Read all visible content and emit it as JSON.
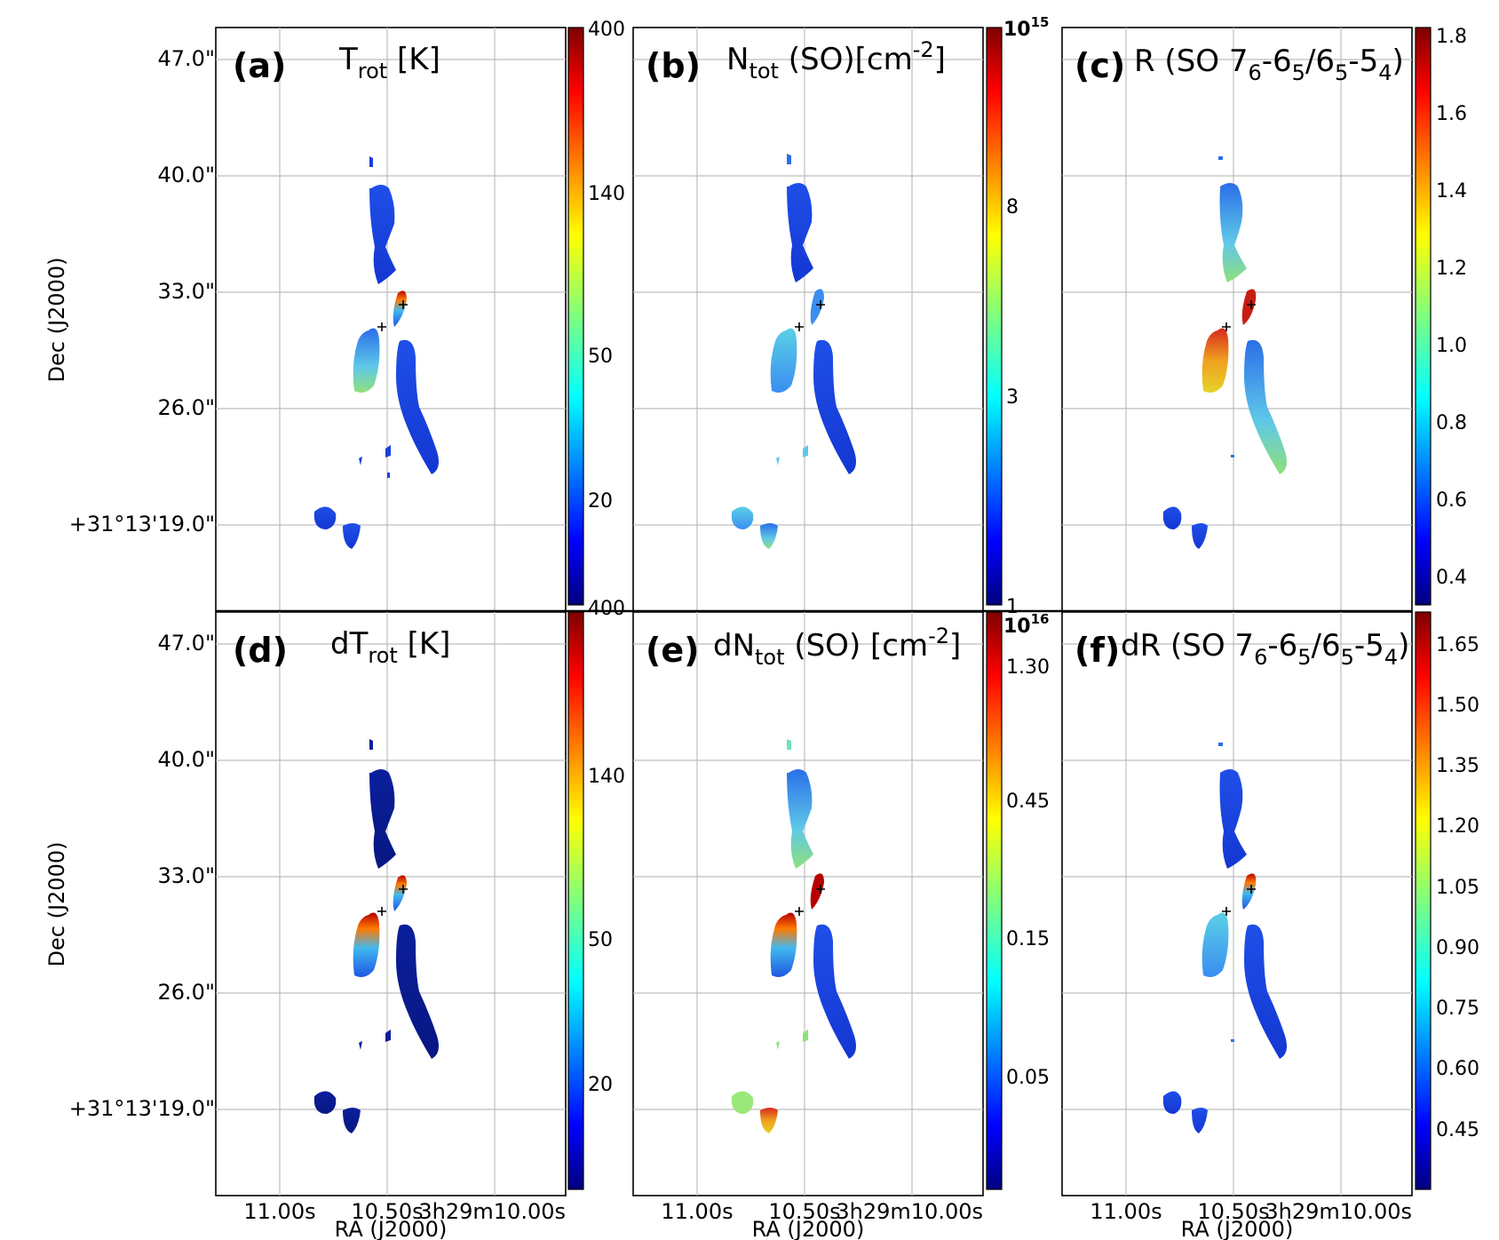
{
  "figure": {
    "axis_label_dec": "Dec (J2000)",
    "axis_label_ra": "RA (J2000)",
    "dec_ticks": [
      "47.0\"",
      "40.0\"",
      "33.0\"",
      "26.0\"",
      "+31°13'19.0\""
    ],
    "ra_ticks": [
      "11.00s",
      "10.50s",
      "3h29m10.00s"
    ]
  },
  "panels": [
    {
      "id": "a",
      "letter": "(a)",
      "title": {
        "main": "T",
        "sub": "rot",
        "tail": " [K]"
      },
      "colorbar": {
        "labels": [
          "400",
          "140",
          "50",
          "20"
        ],
        "exponent": "",
        "top_tick": ""
      }
    },
    {
      "id": "b",
      "letter": "(b)",
      "title": {
        "main": "N",
        "sub": "tot",
        "tail": " (SO)[cm",
        "sup": "-2",
        "end": "]"
      },
      "colorbar": {
        "labels": [
          "8",
          "3"
        ],
        "exponent": "10",
        "exponent_sup": "15",
        "bottom_tick": "1"
      }
    },
    {
      "id": "c",
      "letter": "(c)",
      "title": {
        "main": "R (SO 7",
        "s1": "6",
        "m1": "-6",
        "s2": "5",
        "m2": "/6",
        "s3": "5",
        "m3": "-5",
        "s4": "4",
        "end": ")"
      },
      "colorbar": {
        "labels": [
          "1.8",
          "1.6",
          "1.4",
          "1.2",
          "1.0",
          "0.8",
          "0.6",
          "0.4"
        ]
      }
    },
    {
      "id": "d",
      "letter": "(d)",
      "title": {
        "main": "dT",
        "sub": "rot",
        "tail": " [K]"
      },
      "colorbar": {
        "labels": [
          "400",
          "140",
          "50",
          "20"
        ]
      }
    },
    {
      "id": "e",
      "letter": "(e)",
      "title": {
        "main": "dN",
        "sub": "tot",
        "tail": " (SO) [cm",
        "sup": "-2",
        "end": "]"
      },
      "colorbar": {
        "labels": [
          "1.30",
          "0.45",
          "0.15",
          "0.05"
        ],
        "exponent": "10",
        "exponent_sup": "16"
      }
    },
    {
      "id": "f",
      "letter": "(f)",
      "title": {
        "main": "dR (SO 7",
        "s1": "6",
        "m1": "-6",
        "s2": "5",
        "m2": "/6",
        "s3": "5",
        "m3": "-5",
        "s4": "4",
        "end": ")"
      },
      "colorbar": {
        "labels": [
          "1.65",
          "1.50",
          "1.35",
          "1.20",
          "1.05",
          "0.90",
          "0.75",
          "0.60",
          "0.45"
        ]
      }
    }
  ],
  "colors": {
    "jet_dark_blue": "#00007f",
    "jet_blue": "#0000ff",
    "jet_cyan": "#00ffff",
    "jet_yellow": "#ffff00",
    "jet_red": "#ff0000",
    "jet_dark_red": "#7f0000"
  }
}
